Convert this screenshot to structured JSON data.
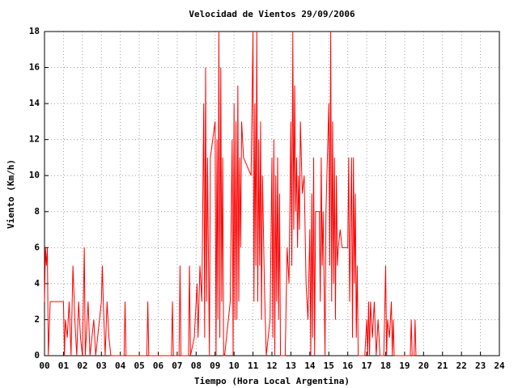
{
  "chart_data": {
    "type": "line",
    "title": "Velocidad de Vientos 29/09/2006",
    "x_label": "Tiempo (Hora Local Argentina)",
    "y_label": "Viento (Km/h)",
    "grid": true,
    "xlim": [
      0,
      24
    ],
    "ylim": [
      0,
      18
    ],
    "xticks": [
      {
        "value": 0,
        "label": "00"
      },
      {
        "value": 1,
        "label": "01"
      },
      {
        "value": 2,
        "label": "02"
      },
      {
        "value": 3,
        "label": "03"
      },
      {
        "value": 4,
        "label": "04"
      },
      {
        "value": 5,
        "label": "05"
      },
      {
        "value": 6,
        "label": "06"
      },
      {
        "value": 7,
        "label": "07"
      },
      {
        "value": 8,
        "label": "08"
      },
      {
        "value": 9,
        "label": "09"
      },
      10,
      11,
      12,
      13,
      14,
      15,
      16,
      17,
      18,
      19,
      20,
      21,
      22,
      23,
      24
    ],
    "yticks": [
      0,
      2,
      4,
      6,
      8,
      10,
      12,
      14,
      16,
      18
    ],
    "series": [
      {
        "color": "#ff0000",
        "x": [
          0.0,
          0.05,
          0.1,
          0.15,
          0.2,
          0.3,
          0.4,
          0.5,
          0.8,
          1.0,
          1.05,
          1.1,
          1.2,
          1.3,
          1.4,
          1.5,
          1.6,
          1.7,
          1.8,
          1.9,
          2.0,
          2.1,
          2.15,
          2.3,
          2.4,
          2.5,
          2.6,
          2.7,
          2.9,
          3.0,
          3.05,
          3.1,
          3.2,
          3.3,
          3.4,
          3.5,
          3.6,
          4.2,
          4.25,
          4.3,
          5.4,
          5.45,
          5.5,
          6.7,
          6.75,
          6.8,
          7.1,
          7.15,
          7.2,
          7.6,
          7.65,
          7.7,
          7.9,
          8.0,
          8.05,
          8.1,
          8.2,
          8.3,
          8.4,
          8.45,
          8.5,
          8.55,
          8.6,
          8.7,
          8.75,
          9.0,
          9.05,
          9.1,
          9.15,
          9.2,
          9.25,
          9.3,
          9.35,
          9.4,
          9.45,
          9.5,
          9.8,
          9.9,
          9.95,
          10.0,
          10.05,
          10.1,
          10.15,
          10.2,
          10.25,
          10.3,
          10.35,
          10.4,
          10.5,
          10.9,
          11.0,
          11.05,
          11.1,
          11.15,
          11.2,
          11.25,
          11.3,
          11.35,
          11.4,
          11.45,
          11.5,
          11.6,
          11.7,
          11.9,
          12.0,
          12.05,
          12.1,
          12.15,
          12.2,
          12.25,
          12.3,
          12.35,
          12.4,
          12.45,
          12.7,
          12.8,
          12.9,
          13.0,
          13.05,
          13.1,
          13.15,
          13.2,
          13.25,
          13.3,
          13.35,
          13.4,
          13.45,
          13.5,
          13.6,
          13.7,
          13.8,
          13.9,
          14.0,
          14.05,
          14.1,
          14.15,
          14.2,
          14.25,
          14.3,
          14.5,
          14.55,
          14.6,
          14.65,
          14.7,
          14.8,
          14.85,
          15.0,
          15.05,
          15.1,
          15.15,
          15.2,
          15.25,
          15.3,
          15.35,
          15.4,
          15.45,
          15.5,
          15.6,
          15.7,
          16.0,
          16.05,
          16.1,
          16.2,
          16.25,
          16.3,
          16.35,
          16.4,
          16.45,
          16.5,
          16.55,
          16.6,
          16.9,
          17.0,
          17.05,
          17.1,
          17.15,
          17.2,
          17.3,
          17.4,
          17.5,
          17.6,
          17.7,
          17.9,
          18.0,
          18.05,
          18.1,
          18.2,
          18.3,
          18.35,
          18.4,
          18.45,
          18.5,
          19.3,
          19.35,
          19.4,
          19.5,
          19.55,
          19.6
        ],
        "values": [
          3,
          6,
          5,
          6,
          0,
          3,
          3,
          3,
          3,
          3,
          0,
          2,
          1,
          3,
          0,
          5,
          2,
          0,
          3,
          1,
          0,
          6,
          0,
          3,
          0,
          1,
          2,
          0,
          2,
          3,
          5,
          3,
          0,
          3,
          1,
          0,
          0,
          0,
          3,
          0,
          0,
          3,
          0,
          0,
          3,
          0,
          0,
          5,
          0,
          0,
          5,
          0,
          1,
          3,
          4,
          1,
          5,
          3,
          14,
          1,
          16,
          3,
          11,
          0,
          11,
          13,
          0,
          12,
          2,
          18,
          1,
          16,
          3,
          11,
          0,
          0,
          3,
          12,
          0,
          14,
          2,
          13,
          2,
          15,
          3,
          11,
          6,
          13,
          11,
          10,
          18,
          3,
          14,
          5,
          18,
          3,
          12,
          5,
          13,
          2,
          10,
          4,
          0,
          2,
          11,
          1,
          12,
          0,
          10,
          3,
          11,
          2,
          9,
          0,
          0,
          6,
          4,
          13,
          5,
          18,
          7,
          15,
          8,
          11,
          6,
          10,
          7,
          13,
          9,
          10,
          4,
          2,
          7,
          0,
          9,
          1,
          11,
          0,
          8,
          8,
          3,
          11,
          5,
          8,
          0,
          8,
          14,
          5,
          18,
          3,
          13,
          4,
          11,
          2,
          10,
          5,
          6,
          7,
          6,
          6,
          11,
          3,
          11,
          1,
          11,
          4,
          9,
          1,
          5,
          0,
          0,
          0,
          2,
          0,
          3,
          0,
          3,
          1,
          3,
          0,
          2,
          0,
          0,
          5,
          0,
          2,
          1,
          3,
          0,
          2,
          0,
          0,
          0,
          2,
          0,
          0,
          2,
          0
        ]
      }
    ]
  }
}
